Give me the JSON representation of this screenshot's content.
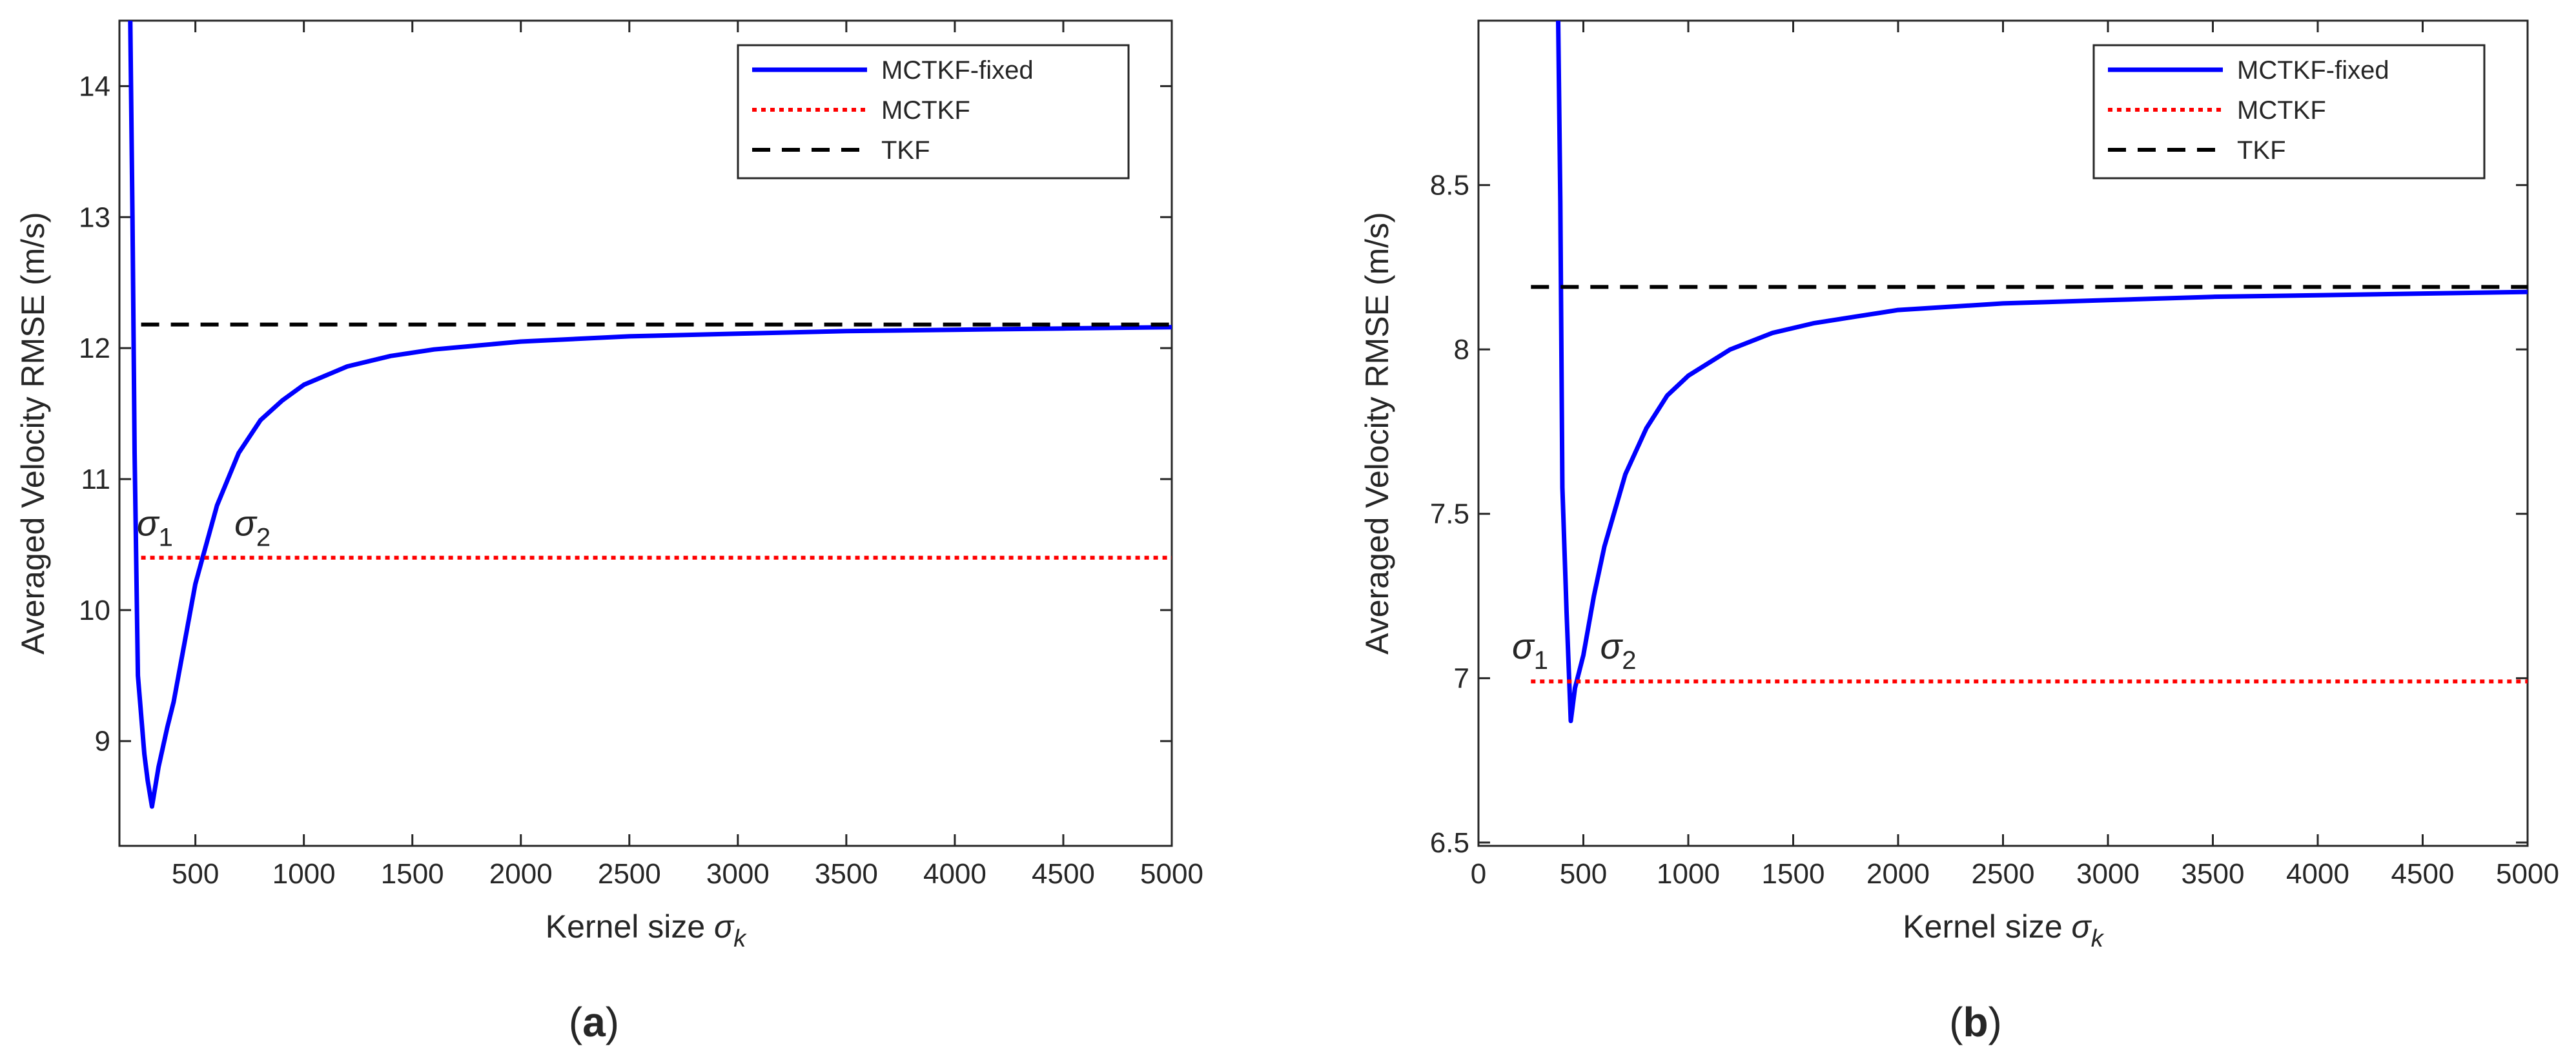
{
  "chart_data": [
    {
      "type": "line",
      "panel": "a",
      "caption": {
        "open": "(",
        "letter": "a",
        "close": ")"
      },
      "xlabel": "Kernel size",
      "xlabel_symbol": "σ",
      "xlabel_sub": "k",
      "ylabel": "Averaged Velocity RMSE (m/s)",
      "xlim": [
        150,
        5000
      ],
      "ylim": [
        8.2,
        14.5
      ],
      "xticks": [
        500,
        1000,
        1500,
        2000,
        2500,
        3000,
        3500,
        4000,
        4500,
        5000
      ],
      "yticks": [
        9,
        10,
        11,
        12,
        13,
        14
      ],
      "legend_position": "top-right",
      "series": [
        {
          "name": "MCTKF-fixed",
          "style": "solid",
          "color": "#0000ff",
          "x": [
            200,
            210,
            220,
            235,
            250,
            265,
            280,
            300,
            330,
            370,
            400,
            450,
            500,
            550,
            600,
            700,
            800,
            900,
            1000,
            1200,
            1400,
            1600,
            1800,
            2000,
            2500,
            3000,
            3500,
            4000,
            4500,
            5000
          ],
          "y": [
            14.5,
            13.0,
            11.2,
            9.5,
            9.2,
            8.9,
            8.7,
            8.5,
            8.8,
            9.1,
            9.3,
            9.75,
            10.2,
            10.5,
            10.8,
            11.2,
            11.45,
            11.6,
            11.72,
            11.86,
            11.94,
            11.99,
            12.02,
            12.05,
            12.09,
            12.11,
            12.13,
            12.14,
            12.15,
            12.16
          ]
        },
        {
          "name": "MCTKF",
          "style": "dotted",
          "color": "#ff0000",
          "x": [
            250,
            5000
          ],
          "y": [
            10.4,
            10.4
          ]
        },
        {
          "name": "TKF",
          "style": "dashed",
          "color": "#000000",
          "x": [
            250,
            5000
          ],
          "y": [
            12.18,
            12.18
          ]
        }
      ],
      "annotations": [
        {
          "symbol": "σ",
          "sub": "1",
          "x": 230,
          "y": 10.52
        },
        {
          "symbol": "σ",
          "sub": "2",
          "x": 680,
          "y": 10.52
        }
      ]
    },
    {
      "type": "line",
      "panel": "b",
      "caption": {
        "open": "(",
        "letter": "b",
        "close": ")"
      },
      "xlabel": "Kernel size",
      "xlabel_symbol": "σ",
      "xlabel_sub": "k",
      "ylabel": "Averaged Velocity RMSE (m/s)",
      "xlim": [
        0,
        5000
      ],
      "ylim": [
        6.49,
        9.0
      ],
      "xticks": [
        0,
        500,
        1000,
        1500,
        2000,
        2500,
        3000,
        3500,
        4000,
        4500,
        5000
      ],
      "yticks": [
        6.5,
        7,
        7.5,
        8,
        8.5
      ],
      "legend_position": "top-right",
      "series": [
        {
          "name": "MCTKF-fixed",
          "style": "solid",
          "color": "#0000ff",
          "x": [
            380,
            390,
            400,
            420,
            440,
            460,
            500,
            550,
            600,
            700,
            800,
            900,
            1000,
            1200,
            1400,
            1600,
            1800,
            2000,
            2500,
            3000,
            3500,
            4000,
            4500,
            5000
          ],
          "y": [
            9.0,
            8.45,
            7.58,
            7.2,
            6.87,
            6.97,
            7.07,
            7.25,
            7.4,
            7.62,
            7.76,
            7.86,
            7.92,
            8.0,
            8.05,
            8.08,
            8.1,
            8.12,
            8.14,
            8.15,
            8.16,
            8.165,
            8.17,
            8.175
          ]
        },
        {
          "name": "MCTKF",
          "style": "dotted",
          "color": "#ff0000",
          "x": [
            250,
            5000
          ],
          "y": [
            6.99,
            6.99
          ]
        },
        {
          "name": "TKF",
          "style": "dashed",
          "color": "#000000",
          "x": [
            250,
            5000
          ],
          "y": [
            8.19,
            8.19
          ]
        }
      ],
      "annotations": [
        {
          "symbol": "σ",
          "sub": "1",
          "x": 160,
          "y": 7.04
        },
        {
          "symbol": "σ",
          "sub": "2",
          "x": 580,
          "y": 7.04
        }
      ]
    }
  ]
}
